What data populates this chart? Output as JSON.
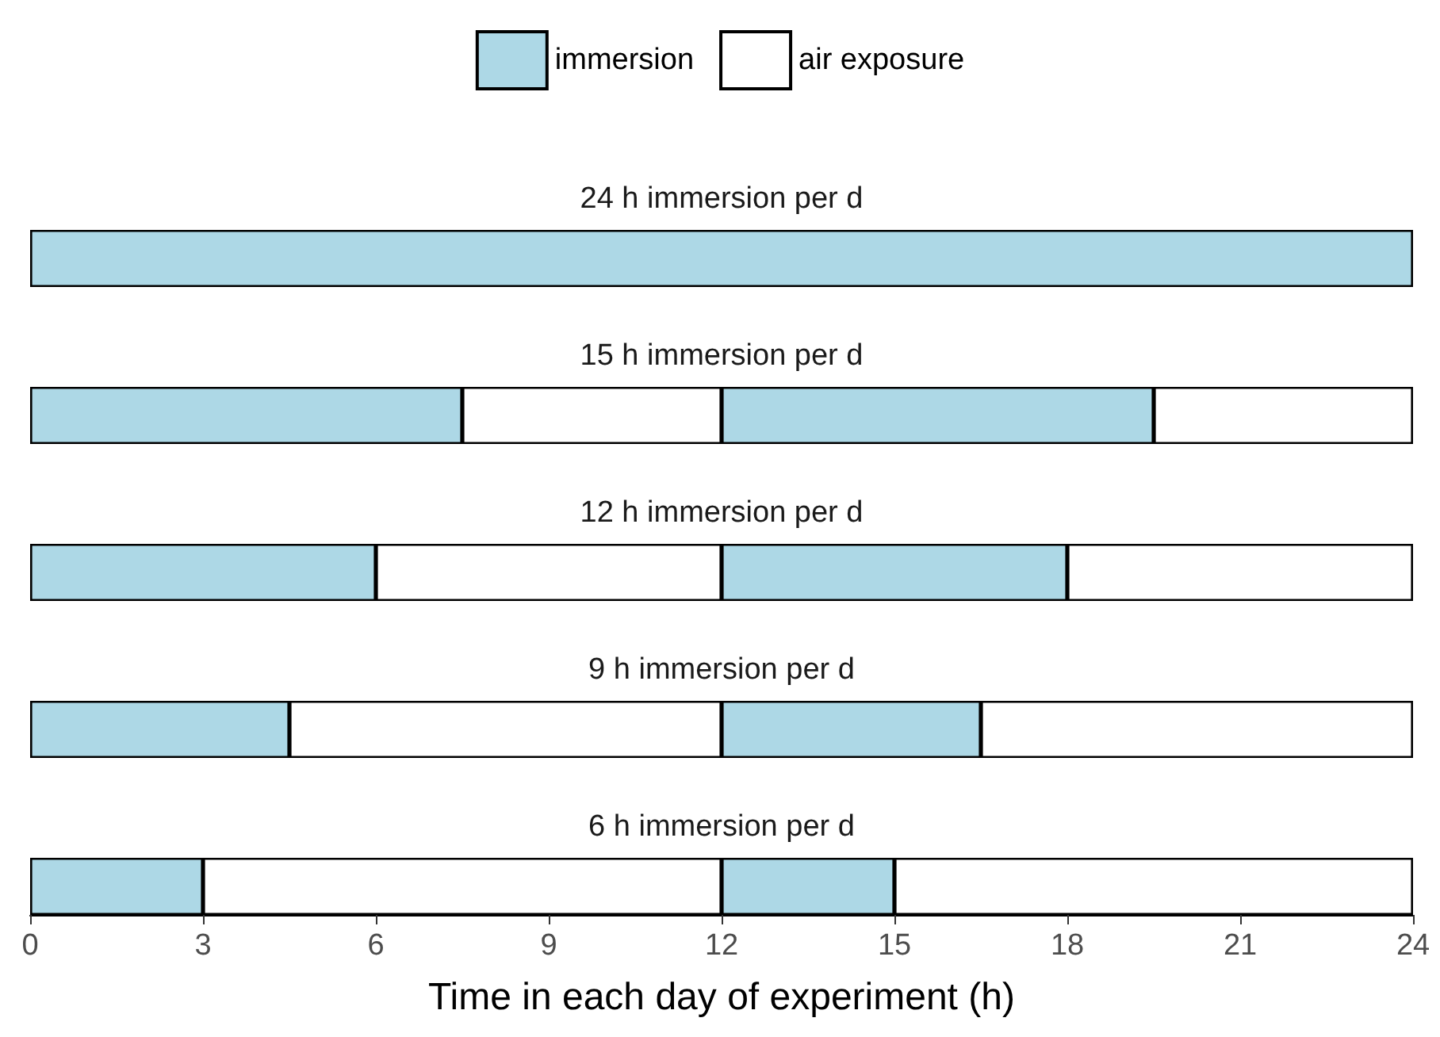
{
  "chart_data": {
    "type": "bar",
    "orientation": "horizontal",
    "stacked": true,
    "categories": [
      "24 h immersion per d",
      "15 h immersion per d",
      "12 h immersion per d",
      "9 h immersion per d",
      "6 h immersion per d"
    ],
    "legend": "top",
    "xlim": [
      0,
      24
    ],
    "xticks": [
      0,
      3,
      6,
      9,
      12,
      15,
      18,
      21,
      24
    ],
    "xlabel": "Time in each day of experiment (h)",
    "series": [
      {
        "name": "immersion",
        "color": "#add8e6",
        "values": [
          24,
          7.5,
          6,
          4.5,
          3
        ]
      },
      {
        "name": "air exposure",
        "color": "#ffffff",
        "values": [
          null,
          4.5,
          6,
          7.5,
          9
        ]
      },
      {
        "color": "#add8e6",
        "values": [
          null,
          7.5,
          6,
          4.5,
          3
        ]
      },
      {
        "color": "#ffffff",
        "values": [
          null,
          4.5,
          6,
          7.5,
          9
        ]
      }
    ]
  }
}
